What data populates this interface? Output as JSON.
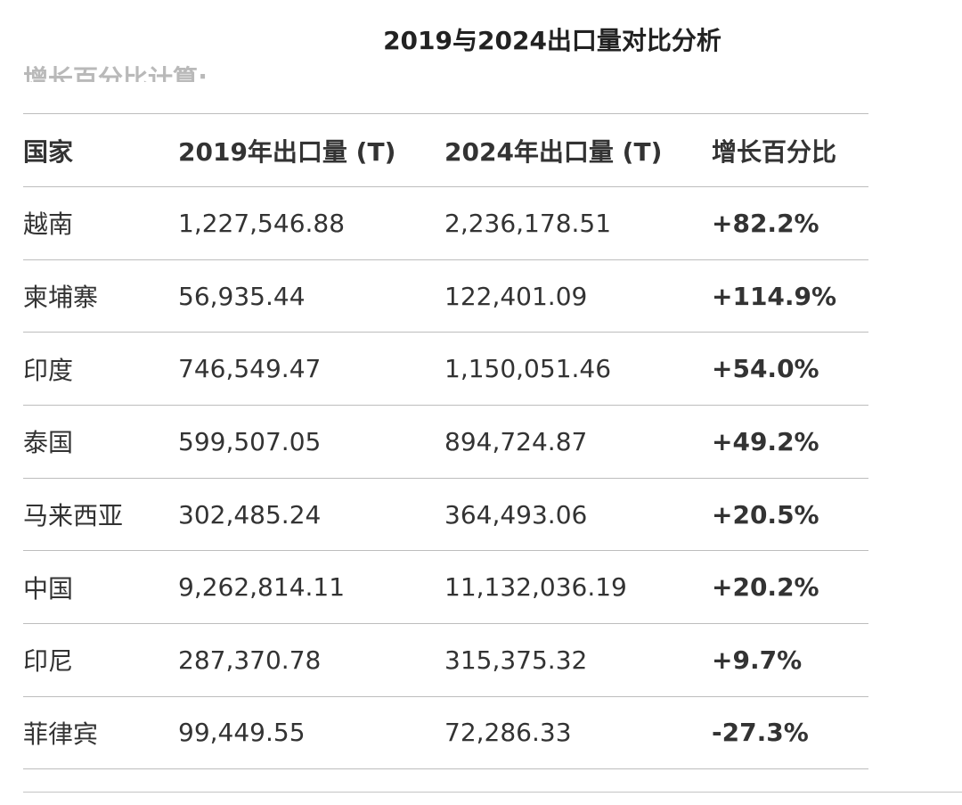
{
  "title": "2019与2024出口量对比分析",
  "partial_caption": "增长百分比计算:",
  "table": {
    "headers": [
      "国家",
      "2019年出口量 (T)",
      "2024年出口量 (T)",
      "增长百分比"
    ],
    "rows": [
      {
        "country": "越南",
        "y2019": "1,227,546.88",
        "y2024": "2,236,178.51",
        "growth": "+82.2%"
      },
      {
        "country": "柬埔寨",
        "y2019": "56,935.44",
        "y2024": "122,401.09",
        "growth": "+114.9%"
      },
      {
        "country": "印度",
        "y2019": "746,549.47",
        "y2024": "1,150,051.46",
        "growth": "+54.0%"
      },
      {
        "country": "泰国",
        "y2019": "599,507.05",
        "y2024": "894,724.87",
        "growth": "+49.2%"
      },
      {
        "country": "马来西亚",
        "y2019": "302,485.24",
        "y2024": "364,493.06",
        "growth": "+20.5%"
      },
      {
        "country": "中国",
        "y2019": "9,262,814.11",
        "y2024": "11,132,036.19",
        "growth": "+20.2%"
      },
      {
        "country": "印尼",
        "y2019": "287,370.78",
        "y2024": "315,375.32",
        "growth": "+9.7%"
      },
      {
        "country": "菲律宾",
        "y2019": "99,449.55",
        "y2024": "72,286.33",
        "growth": "-27.3%"
      }
    ]
  }
}
